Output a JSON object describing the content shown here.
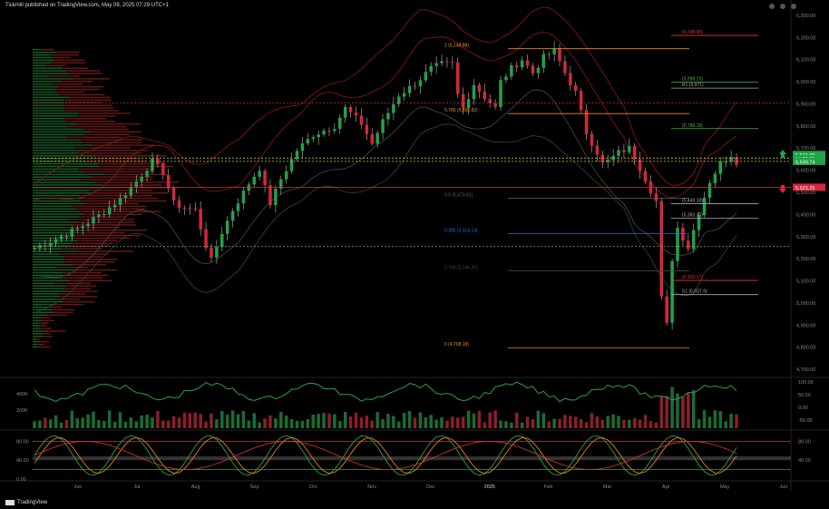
{
  "header": {
    "published": "Tickmill published on TradingView.com, May 09, 2025 07:29 UTC+1",
    "brand": "TradingView"
  },
  "colors": {
    "bull": "#1fa34a",
    "bear": "#d6263c",
    "fib_orange": "#f08a24",
    "fib_blue": "#3a66d8",
    "pivot_green": "#4caf50",
    "pivot_red": "#e53935",
    "band_red": "#8e1a1a",
    "band_gray": "#4a4a4a"
  },
  "chart_data": [
    {
      "type": "candlestick",
      "title": "",
      "x_axis": {
        "ticks": [
          "Jun",
          "Jul",
          "Aug",
          "Sep",
          "Oct",
          "Nov",
          "Dec",
          "2025",
          "Feb",
          "Mar",
          "Apr",
          "May",
          "Jun"
        ]
      },
      "y_axis": {
        "ticks": [
          6300,
          6200,
          6100,
          6000,
          5900,
          5800,
          5700,
          5600,
          5500,
          5400,
          5300,
          5200,
          5100,
          5000,
          4900,
          4800,
          4700
        ],
        "tick_labels": [
          "6,300.00",
          "6,200.00",
          "6,100.00",
          "6,000.00",
          "5,900.00",
          "5,800.00",
          "5,700.00",
          "5,600.00",
          "5,500.00",
          "5,400.00",
          "5,300.00",
          "5,200.00",
          "5,100.00",
          "5,000.00",
          "4,900.00",
          "4,800.00",
          "4,700.00"
        ],
        "ylim": [
          4680,
          6320
        ]
      },
      "close_path": [
        [
          0,
          5250
        ],
        [
          4,
          5290
        ],
        [
          8,
          5335
        ],
        [
          12,
          5395
        ],
        [
          16,
          5470
        ],
        [
          19,
          5550
        ],
        [
          22,
          5640
        ],
        [
          24,
          5590
        ],
        [
          26,
          5450
        ],
        [
          28,
          5430
        ],
        [
          30,
          5420
        ],
        [
          32,
          5260
        ],
        [
          33,
          5190
        ],
        [
          35,
          5320
        ],
        [
          37,
          5420
        ],
        [
          40,
          5540
        ],
        [
          42,
          5610
        ],
        [
          43,
          5520
        ],
        [
          44,
          5450
        ],
        [
          46,
          5560
        ],
        [
          49,
          5690
        ],
        [
          52,
          5760
        ],
        [
          56,
          5800
        ],
        [
          58,
          5880
        ],
        [
          61,
          5810
        ],
        [
          63,
          5720
        ],
        [
          65,
          5820
        ],
        [
          68,
          5940
        ],
        [
          71,
          5990
        ],
        [
          74,
          6060
        ],
        [
          76,
          6080
        ],
        [
          78,
          6080
        ],
        [
          79,
          5940
        ],
        [
          80,
          5880
        ],
        [
          82,
          5990
        ],
        [
          84,
          5930
        ],
        [
          86,
          5880
        ],
        [
          87,
          6000
        ],
        [
          89,
          6060
        ],
        [
          91,
          6100
        ],
        [
          93,
          6040
        ],
        [
          95,
          6110
        ],
        [
          97,
          6140
        ],
        [
          99,
          6040
        ],
        [
          101,
          5950
        ],
        [
          103,
          5770
        ],
        [
          105,
          5680
        ],
        [
          106,
          5630
        ],
        [
          107,
          5640
        ],
        [
          109,
          5680
        ],
        [
          111,
          5700
        ],
        [
          112,
          5660
        ],
        [
          114,
          5560
        ],
        [
          116,
          5460
        ],
        [
          117,
          5020
        ],
        [
          118,
          4900
        ],
        [
          119,
          5200
        ],
        [
          120,
          5340
        ],
        [
          122,
          5250
        ],
        [
          124,
          5410
        ],
        [
          126,
          5550
        ],
        [
          128,
          5630
        ],
        [
          130,
          5670
        ],
        [
          131,
          5640
        ]
      ],
      "horizontal_levels": [
        {
          "label": "1 (6,148.88)",
          "value": 6149
        },
        {
          "label": "0.786 (5,855.82)",
          "value": 5856
        },
        {
          "label": "0.5 (5,473.61)",
          "value": 5474
        },
        {
          "label": "0.382 (5,314.14)",
          "value": 5314
        },
        {
          "label": "0.786 (5,145.20)",
          "value": 5145
        },
        {
          "label": "0 (4,798.18)",
          "value": 4798
        },
        {
          "label": "(6,208.90)",
          "value": 6209
        },
        {
          "label": "(5,998.23)",
          "value": 5998
        },
        {
          "label": "R1 (5,971)",
          "value": 5971
        },
        {
          "label": "(5,788.18)",
          "value": 5788
        },
        {
          "label": "(5,449.18)",
          "value": 5449
        },
        {
          "label": "(5,383.30)",
          "value": 5383
        },
        {
          "label": "(5,102.17)",
          "value": 5102
        },
        {
          "label": "S1 (5,037.9)",
          "value": 5038
        },
        {
          "label": "",
          "value": 5905
        },
        {
          "label": "",
          "value": 5655
        },
        {
          "label": "",
          "value": 5640
        },
        {
          "label": "",
          "value": 5522
        },
        {
          "label": "",
          "value": 5255
        }
      ],
      "price_tags": [
        {
          "label": "5,671.39",
          "value": 5671
        },
        {
          "label": "14:28:35",
          "value": 5653
        },
        {
          "label": "5,639.74",
          "value": 5640
        },
        {
          "label": "5,523.25",
          "value": 5523
        }
      ]
    },
    {
      "type": "bar",
      "title": "",
      "y_axis_left": [
        "400K",
        "200K"
      ],
      "y_axis_right": [
        "100.00",
        "50.00",
        "0.00",
        "-50.00"
      ]
    },
    {
      "type": "line",
      "title": "",
      "y_axis_left": [
        "80.00",
        "40.00",
        "0.00"
      ],
      "y_axis_right": [
        "80.00",
        "40.00"
      ],
      "ylim": [
        0,
        100
      ],
      "upper": 80,
      "lower": 20
    }
  ]
}
